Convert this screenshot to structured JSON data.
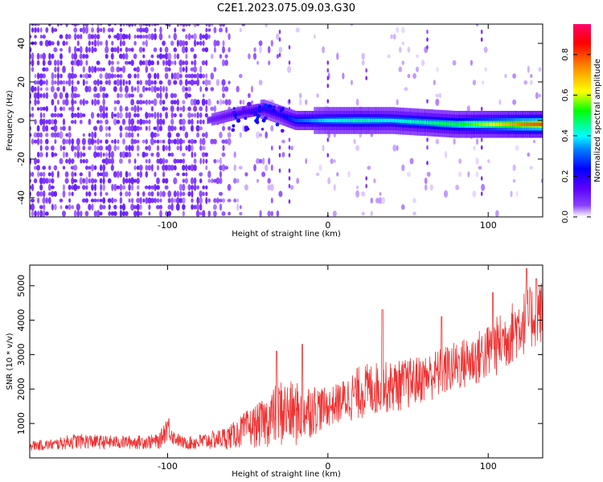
{
  "title": "C2E1.2023.075.09.03.G30",
  "chart_data": [
    {
      "type": "heatmap",
      "xlabel": "Height of straight line (km)",
      "ylabel": "Frequency (Hz)",
      "xlim": [
        -186,
        134
      ],
      "ylim": [
        -50,
        50
      ],
      "xticks": [
        -100,
        0,
        100
      ],
      "yticks": [
        -40,
        -20,
        0,
        20,
        40
      ],
      "xtick_labels": [
        "-100",
        "0",
        "100"
      ],
      "ytick_labels": [
        "-40",
        "-20",
        "0",
        "20",
        "40"
      ],
      "colorbar": {
        "label": "Normalized spectral amplitude",
        "range": [
          0.0,
          0.95
        ],
        "ticks": [
          0.0,
          0.2,
          0.4,
          0.6,
          0.8
        ],
        "tick_labels": [
          "0.0",
          "0.2",
          "0.4",
          "0.6",
          "0.8"
        ],
        "colormap": [
          "#ffffff",
          "#6a00ff",
          "#0000ff",
          "#00ffff",
          "#00ff00",
          "#ffff00",
          "#ff8800",
          "#ff0000",
          "#ff0066"
        ]
      },
      "signal_track": {
        "description": "narrow band near 0 Hz from about -75 km to the right edge, amplitude increasing to the right",
        "x": [
          -75,
          -55,
          -40,
          -30,
          -20,
          0,
          20,
          40,
          60,
          80,
          100,
          120,
          134
        ],
        "frequency_hz": [
          0,
          4,
          6,
          3,
          0,
          0,
          0,
          0,
          -1,
          -2,
          -2,
          -2,
          -2
        ],
        "amplitude": [
          0.1,
          0.15,
          0.2,
          0.2,
          0.3,
          0.4,
          0.45,
          0.4,
          0.45,
          0.5,
          0.6,
          0.75,
          0.8
        ]
      }
    },
    {
      "type": "line",
      "xlabel": "Height of straight line (km)",
      "ylabel": "SNR (10 * v/v)",
      "xlim": [
        -186,
        134
      ],
      "ylim": [
        0,
        5600
      ],
      "xticks": [
        -100,
        0,
        100
      ],
      "yticks": [
        1000,
        2000,
        3000,
        4000,
        5000
      ],
      "xtick_labels": [
        "-100",
        "0",
        "100"
      ],
      "ytick_labels": [
        "1000",
        "2000",
        "3000",
        "4000",
        "5000"
      ],
      "series": [
        {
          "color": "#ee3333",
          "envelope": {
            "x": [
              -186,
              -170,
              -160,
              -150,
              -140,
              -120,
              -105,
              -100,
              -96,
              -90,
              -80,
              -70,
              -60,
              -50,
              -40,
              -30,
              -20,
              -10,
              0,
              10,
              20,
              30,
              40,
              50,
              60,
              70,
              80,
              90,
              100,
              110,
              120,
              134
            ],
            "low": [
              200,
              220,
              250,
              260,
              250,
              250,
              250,
              500,
              350,
              250,
              200,
              250,
              250,
              300,
              300,
              300,
              300,
              600,
              900,
              1000,
              1100,
              1200,
              1300,
              1400,
              1600,
              1700,
              1900,
              2000,
              2200,
              2500,
              2900,
              3300
            ],
            "high": [
              500,
              550,
              700,
              700,
              650,
              650,
              700,
              1350,
              800,
              600,
              700,
              800,
              1000,
              1400,
              1700,
              2300,
              2200,
              2200,
              2000,
              2300,
              2700,
              2800,
              2800,
              2900,
              3000,
              3200,
              3400,
              3600,
              3900,
              4300,
              4800,
              5200
            ]
          },
          "spikes": [
            {
              "x": -32,
              "y": 3100
            },
            {
              "x": -16,
              "y": 3300
            },
            {
              "x": 34,
              "y": 4300
            },
            {
              "x": 71,
              "y": 4100
            },
            {
              "x": 103,
              "y": 4800
            },
            {
              "x": 124,
              "y": 5500
            },
            {
              "x": 130,
              "y": 5200
            }
          ]
        }
      ]
    }
  ]
}
